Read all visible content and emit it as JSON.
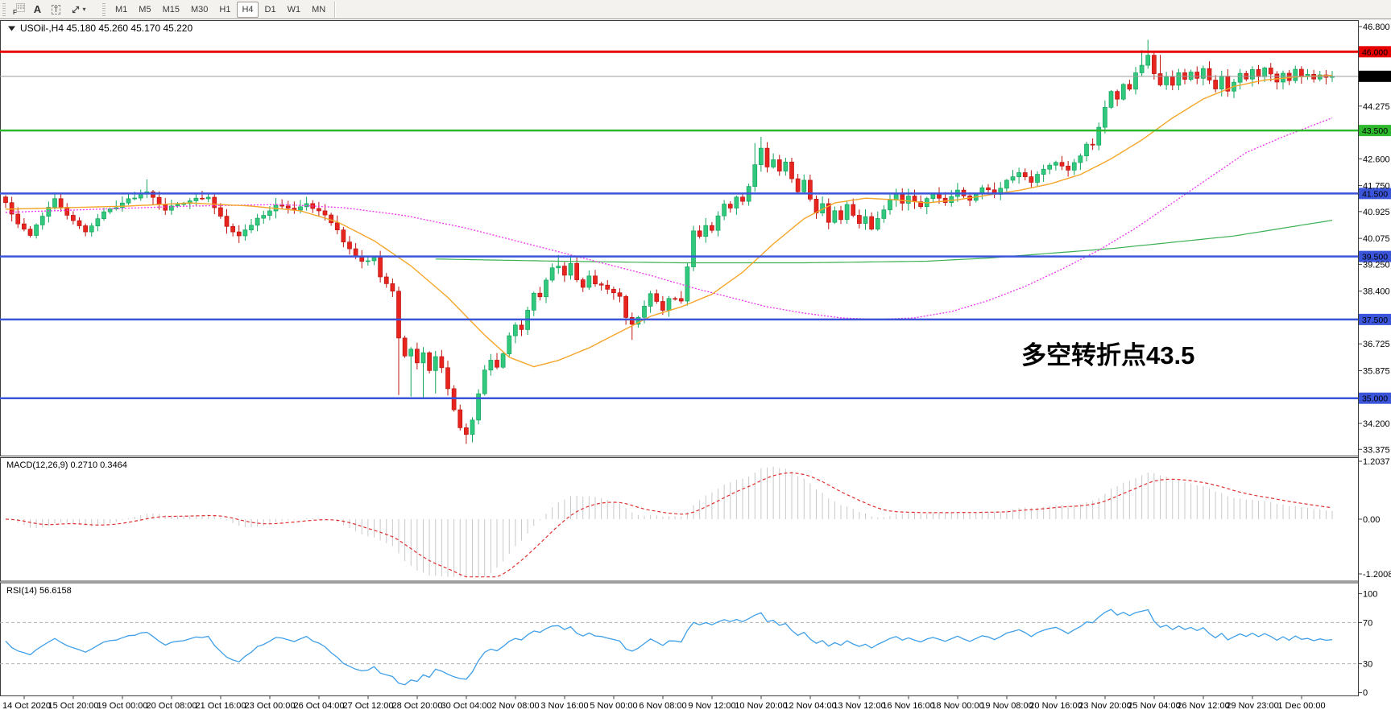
{
  "toolbar": {
    "tool_icons": {
      "grid_label": "F",
      "a_label": "A",
      "t_label": "T",
      "caret": "▾"
    },
    "timeframes": [
      "M1",
      "M5",
      "M15",
      "M30",
      "H1",
      "H4",
      "D1",
      "W1",
      "MN"
    ],
    "active_timeframe": "H4"
  },
  "chart": {
    "title": "USOil-,H4  45.180 45.260 45.170 45.220",
    "symbol": "USOil-",
    "period": "H4",
    "ohlc": {
      "open": "45.180",
      "high": "45.260",
      "low": "45.170",
      "close": "45.220"
    },
    "current_price": "45.220",
    "annotation": {
      "text": "多空转折点43.5",
      "color": "#ee1c24"
    },
    "axis_ticks": [
      "46.800",
      "44.275",
      "42.600",
      "41.750",
      "40.925",
      "40.075",
      "39.250",
      "38.400",
      "36.725",
      "35.875",
      "34.200",
      "33.375"
    ],
    "levels": [
      {
        "label": "46.000",
        "value": 46.0,
        "color": "#e60000",
        "width": 3
      },
      {
        "label": "43.500",
        "value": 43.5,
        "color": "#2db82d",
        "width": 2.5
      },
      {
        "label": "41.500",
        "value": 41.5,
        "color": "#3a55d9",
        "width": 2.5
      },
      {
        "label": "39.500",
        "value": 39.5,
        "color": "#3a55d9",
        "width": 2.5
      },
      {
        "label": "37.500",
        "value": 37.5,
        "color": "#3a55d9",
        "width": 2.5
      },
      {
        "label": "35.000",
        "value": 35.0,
        "color": "#3a55d9",
        "width": 2.5
      }
    ]
  },
  "macd": {
    "label": "MACD(12,26,9) 0.2710 0.3464",
    "params": "12,26,9",
    "value": "0.2710",
    "signal_value": "0.3464",
    "axis": [
      "1.2037",
      "0.00",
      "-1.2008"
    ]
  },
  "rsi": {
    "label": "RSI(14) 56.6158",
    "period": "14",
    "value": "56.6158",
    "axis": [
      "100",
      "70",
      "30",
      "0"
    ],
    "level_lines": [
      70,
      30
    ]
  },
  "dates": [
    "14 Oct 2020",
    "15 Oct 20:00",
    "19 Oct 00:00",
    "20 Oct 08:00",
    "21 Oct 16:00",
    "23 Oct 00:00",
    "26 Oct 04:00",
    "27 Oct 12:00",
    "28 Oct 20:00",
    "30 Oct 04:00",
    "2 Nov 08:00",
    "3 Nov 16:00",
    "5 Nov 00:00",
    "6 Nov 08:00",
    "9 Nov 12:00",
    "10 Nov 20:00",
    "12 Nov 04:00",
    "13 Nov 12:00",
    "16 Nov 16:00",
    "18 Nov 00:00",
    "19 Nov 08:00",
    "20 Nov 16:00",
    "23 Nov 20:00",
    "25 Nov 04:00",
    "26 Nov 12:00",
    "29 Nov 23:00",
    "1 Dec 00:00"
  ],
  "colors": {
    "candle_up": "#31c97e",
    "candle_up_dark": "#12a55c",
    "candle_down": "#e8241f",
    "candle_down_dark": "#bd1410",
    "ma_fast_orange": "#f5a62a",
    "ma_mid_magenta": "#ee33ee",
    "ma_slow_green": "#3cb054",
    "current_price_line": "#9a9a9a",
    "current_price_badge": "#000000",
    "macd_histogram": "#c9c9c9",
    "macd_signal": "#e03030",
    "rsi_line": "#3f9fe8",
    "rsi_level_dash": "#b0b0b0"
  },
  "chart_data": {
    "type": "candlestick",
    "symbol": "USOil-",
    "timeframe": "H4",
    "bars_count": 217,
    "visible_price_range": [
      33.2,
      47.0
    ],
    "horizontal_levels": [
      46.0,
      43.5,
      41.5,
      39.5,
      37.5,
      35.0
    ],
    "last_price": 45.22,
    "price_waypoints": [
      [
        0,
        41.2
      ],
      [
        2,
        40.5
      ],
      [
        4,
        40.2
      ],
      [
        6,
        40.8
      ],
      [
        8,
        41.3
      ],
      [
        11,
        40.6
      ],
      [
        13,
        40.3
      ],
      [
        16,
        40.9
      ],
      [
        19,
        41.2
      ],
      [
        23,
        41.6
      ],
      [
        26,
        41.0
      ],
      [
        30,
        41.3
      ],
      [
        33,
        41.35
      ],
      [
        36,
        40.5
      ],
      [
        38,
        40.15
      ],
      [
        41,
        40.7
      ],
      [
        44,
        41.1
      ],
      [
        47,
        41.0
      ],
      [
        49,
        41.2
      ],
      [
        52,
        40.8
      ],
      [
        54,
        40.3
      ],
      [
        56,
        39.7
      ],
      [
        58,
        39.3
      ],
      [
        60,
        39.5
      ],
      [
        61,
        38.9
      ],
      [
        63,
        38.4
      ],
      [
        64,
        36.9
      ],
      [
        65,
        36.3
      ],
      [
        66,
        36.6
      ],
      [
        67,
        36.1
      ],
      [
        68,
        36.4
      ],
      [
        69,
        35.9
      ],
      [
        70,
        36.3
      ],
      [
        71,
        36.0
      ],
      [
        72,
        35.3
      ],
      [
        73,
        34.6
      ],
      [
        74,
        34.1
      ],
      [
        75,
        33.8
      ],
      [
        76,
        34.3
      ],
      [
        77,
        35.1
      ],
      [
        78,
        35.9
      ],
      [
        79,
        36.2
      ],
      [
        80,
        36.0
      ],
      [
        81,
        36.4
      ],
      [
        82,
        37.0
      ],
      [
        83,
        37.3
      ],
      [
        84,
        37.2
      ],
      [
        85,
        37.8
      ],
      [
        86,
        38.3
      ],
      [
        87,
        38.2
      ],
      [
        88,
        38.7
      ],
      [
        89,
        39.1
      ],
      [
        90,
        39.2
      ],
      [
        91,
        38.9
      ],
      [
        92,
        39.3
      ],
      [
        93,
        38.8
      ],
      [
        94,
        38.5
      ],
      [
        95,
        38.9
      ],
      [
        96,
        38.6
      ],
      [
        98,
        38.5
      ],
      [
        100,
        38.2
      ],
      [
        101,
        37.6
      ],
      [
        102,
        37.3
      ],
      [
        103,
        37.6
      ],
      [
        104,
        37.9
      ],
      [
        105,
        38.3
      ],
      [
        106,
        38.1
      ],
      [
        107,
        37.8
      ],
      [
        108,
        38.2
      ],
      [
        110,
        38.1
      ],
      [
        111,
        39.2
      ],
      [
        112,
        40.3
      ],
      [
        113,
        40.1
      ],
      [
        114,
        40.5
      ],
      [
        115,
        40.3
      ],
      [
        116,
        40.8
      ],
      [
        117,
        41.2
      ],
      [
        118,
        41.0
      ],
      [
        119,
        41.4
      ],
      [
        120,
        41.3
      ],
      [
        121,
        41.7
      ],
      [
        122,
        42.4
      ],
      [
        123,
        42.9
      ],
      [
        124,
        42.3
      ],
      [
        125,
        42.6
      ],
      [
        126,
        42.2
      ],
      [
        127,
        42.5
      ],
      [
        128,
        42.0
      ],
      [
        129,
        41.6
      ],
      [
        130,
        41.9
      ],
      [
        131,
        41.3
      ],
      [
        132,
        40.9
      ],
      [
        133,
        41.2
      ],
      [
        134,
        40.6
      ],
      [
        135,
        41.0
      ],
      [
        136,
        40.7
      ],
      [
        137,
        41.1
      ],
      [
        138,
        40.8
      ],
      [
        139,
        40.5
      ],
      [
        140,
        40.8
      ],
      [
        141,
        40.4
      ],
      [
        142,
        40.7
      ],
      [
        143,
        41.0
      ],
      [
        144,
        41.3
      ],
      [
        145,
        41.5
      ],
      [
        146,
        41.2
      ],
      [
        147,
        41.4
      ],
      [
        149,
        41.1
      ],
      [
        151,
        41.5
      ],
      [
        153,
        41.2
      ],
      [
        155,
        41.6
      ],
      [
        157,
        41.3
      ],
      [
        159,
        41.7
      ],
      [
        161,
        41.5
      ],
      [
        163,
        41.9
      ],
      [
        165,
        42.2
      ],
      [
        167,
        41.9
      ],
      [
        169,
        42.3
      ],
      [
        171,
        42.5
      ],
      [
        173,
        42.2
      ],
      [
        175,
        42.7
      ],
      [
        176,
        43.1
      ],
      [
        177,
        43.0
      ],
      [
        178,
        43.6
      ],
      [
        179,
        44.2
      ],
      [
        180,
        44.7
      ],
      [
        181,
        44.5
      ],
      [
        182,
        45.0
      ],
      [
        183,
        44.8
      ],
      [
        184,
        45.3
      ],
      [
        185,
        45.6
      ],
      [
        186,
        45.9
      ],
      [
        187,
        45.3
      ],
      [
        188,
        44.9
      ],
      [
        189,
        45.2
      ],
      [
        190,
        44.9
      ],
      [
        191,
        45.3
      ],
      [
        192,
        45.1
      ],
      [
        193,
        45.4
      ],
      [
        194,
        45.2
      ],
      [
        195,
        45.5
      ],
      [
        196,
        45.1
      ],
      [
        197,
        44.8
      ],
      [
        198,
        45.2
      ],
      [
        199,
        44.7
      ],
      [
        200,
        45.0
      ],
      [
        201,
        45.3
      ],
      [
        202,
        45.1
      ],
      [
        203,
        45.4
      ],
      [
        204,
        45.2
      ],
      [
        205,
        45.5
      ],
      [
        206,
        45.3
      ],
      [
        207,
        45.0
      ],
      [
        208,
        45.3
      ],
      [
        209,
        45.1
      ],
      [
        210,
        45.4
      ],
      [
        211,
        45.2
      ],
      [
        212,
        45.3
      ],
      [
        213,
        45.1
      ],
      [
        214,
        45.3
      ],
      [
        215,
        45.2
      ],
      [
        216,
        45.22
      ]
    ],
    "wick_spikes": [
      {
        "bar": 23,
        "high": 41.95
      },
      {
        "bar": 64,
        "low": 35.1
      },
      {
        "bar": 66,
        "low": 35.05
      },
      {
        "bar": 68,
        "low": 35.0
      },
      {
        "bar": 70,
        "low": 35.15
      },
      {
        "bar": 75,
        "low": 33.55
      },
      {
        "bar": 76,
        "low": 33.6
      },
      {
        "bar": 90,
        "high": 39.55
      },
      {
        "bar": 92,
        "high": 39.5
      },
      {
        "bar": 102,
        "low": 36.85
      },
      {
        "bar": 122,
        "high": 43.1
      },
      {
        "bar": 123,
        "high": 43.3
      },
      {
        "bar": 185,
        "high": 46.05
      },
      {
        "bar": 186,
        "high": 46.38
      },
      {
        "bar": 188,
        "high": 45.9
      }
    ],
    "overlays": {
      "ma_fast_orange": [
        [
          0,
          41.0
        ],
        [
          20,
          41.1
        ],
        [
          30,
          41.2
        ],
        [
          40,
          41.1
        ],
        [
          48,
          40.95
        ],
        [
          54,
          40.6
        ],
        [
          60,
          40.0
        ],
        [
          66,
          39.2
        ],
        [
          72,
          38.2
        ],
        [
          78,
          37.0
        ],
        [
          82,
          36.3
        ],
        [
          86,
          36.0
        ],
        [
          90,
          36.2
        ],
        [
          95,
          36.6
        ],
        [
          100,
          37.1
        ],
        [
          105,
          37.6
        ],
        [
          110,
          37.9
        ],
        [
          115,
          38.3
        ],
        [
          120,
          39.0
        ],
        [
          125,
          39.9
        ],
        [
          130,
          40.7
        ],
        [
          135,
          41.2
        ],
        [
          140,
          41.35
        ],
        [
          145,
          41.3
        ],
        [
          150,
          41.2
        ],
        [
          155,
          41.3
        ],
        [
          160,
          41.45
        ],
        [
          165,
          41.6
        ],
        [
          170,
          41.8
        ],
        [
          175,
          42.1
        ],
        [
          180,
          42.6
        ],
        [
          185,
          43.2
        ],
        [
          190,
          43.9
        ],
        [
          195,
          44.5
        ],
        [
          200,
          44.9
        ],
        [
          205,
          45.1
        ],
        [
          210,
          45.2
        ],
        [
          216,
          45.25
        ]
      ],
      "ma_mid_magenta": [
        [
          0,
          40.9
        ],
        [
          15,
          41.0
        ],
        [
          30,
          41.1
        ],
        [
          45,
          41.15
        ],
        [
          55,
          41.05
        ],
        [
          65,
          40.8
        ],
        [
          75,
          40.4
        ],
        [
          85,
          39.9
        ],
        [
          95,
          39.4
        ],
        [
          105,
          38.9
        ],
        [
          112,
          38.5
        ],
        [
          118,
          38.2
        ],
        [
          124,
          37.9
        ],
        [
          130,
          37.7
        ],
        [
          136,
          37.55
        ],
        [
          142,
          37.5
        ],
        [
          148,
          37.55
        ],
        [
          154,
          37.75
        ],
        [
          160,
          38.1
        ],
        [
          166,
          38.55
        ],
        [
          172,
          39.1
        ],
        [
          178,
          39.7
        ],
        [
          184,
          40.4
        ],
        [
          190,
          41.2
        ],
        [
          196,
          42.0
        ],
        [
          202,
          42.8
        ],
        [
          208,
          43.3
        ],
        [
          212,
          43.6
        ],
        [
          216,
          43.9
        ]
      ],
      "ma_slow_green": [
        [
          70,
          39.42
        ],
        [
          90,
          39.35
        ],
        [
          110,
          39.3
        ],
        [
          130,
          39.3
        ],
        [
          150,
          39.35
        ],
        [
          160,
          39.45
        ],
        [
          170,
          39.6
        ],
        [
          180,
          39.75
        ],
        [
          190,
          39.95
        ],
        [
          200,
          40.15
        ],
        [
          208,
          40.4
        ],
        [
          216,
          40.65
        ]
      ]
    },
    "indicators": {
      "macd": {
        "params": [
          12,
          26,
          9
        ],
        "value": 0.271,
        "signal": 0.3464,
        "axis_max": 1.2037,
        "axis_min": -1.2008
      },
      "rsi": {
        "period": 14,
        "value": 56.6158,
        "levels": [
          70,
          30
        ],
        "axis_range": [
          0,
          100
        ]
      }
    }
  }
}
